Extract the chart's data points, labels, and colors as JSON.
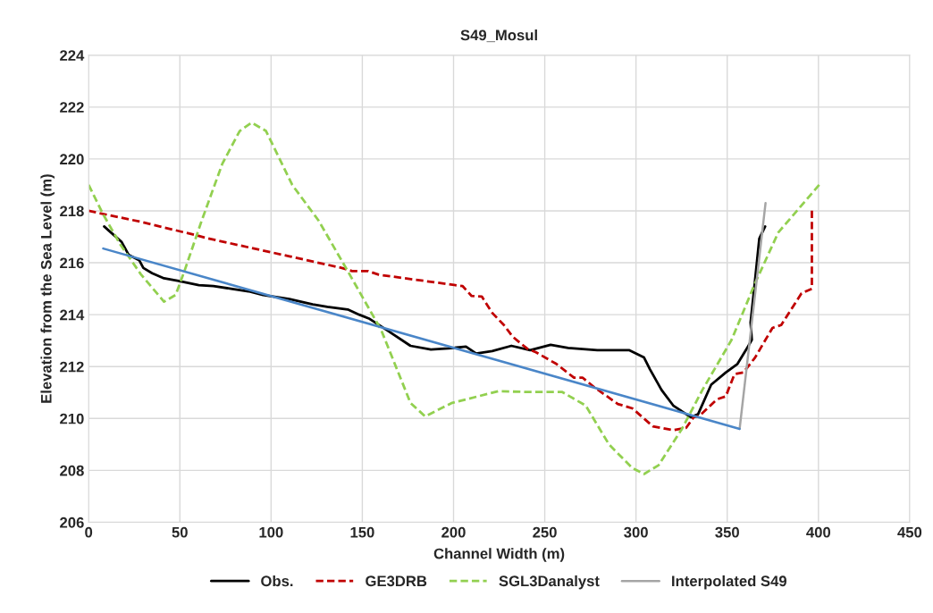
{
  "chart_data": {
    "type": "line",
    "title": "S49_Mosul",
    "xlabel": "Channel Width (m)",
    "ylabel": "Elevation from the Sea Level (m)",
    "xlim": [
      0,
      450
    ],
    "xticks": [
      0,
      50,
      100,
      150,
      200,
      250,
      300,
      350,
      400,
      450
    ],
    "ylim": [
      206,
      224
    ],
    "yticks": [
      206,
      208,
      210,
      212,
      214,
      216,
      218,
      220,
      222,
      224
    ],
    "grid": true,
    "legend": "bottom",
    "marker": "none",
    "series": [
      {
        "name": "Obs.",
        "color": "#000000",
        "line_style": "solid",
        "x": [
          8.5,
          13.3,
          18.1,
          22,
          27.7,
          30,
          34.8,
          41.3,
          49.3,
          60.4,
          68.4,
          78,
          87.6,
          95.6,
          110,
          122.8,
          130.8,
          142,
          148.3,
          154,
          163.6,
          176.4,
          187.6,
          197.2,
          206.8,
          212.4,
          221.2,
          231.7,
          242,
          253.2,
          262.8,
          278.8,
          296.4,
          304.4,
          307.6,
          314,
          320.4,
          330,
          334,
          341.2,
          349.2,
          355.6,
          361.2,
          363.5,
          362.8,
          365.2,
          367.6,
          370.8
        ],
        "values": [
          217.4,
          217.1,
          216.8,
          216.3,
          216.1,
          215.8,
          215.6,
          215.4,
          215.3,
          215.14,
          215.1,
          215.0,
          214.9,
          214.76,
          214.6,
          214.4,
          214.3,
          214.2,
          214.0,
          213.84,
          213.4,
          212.8,
          212.66,
          212.7,
          212.77,
          212.5,
          212.6,
          212.8,
          212.63,
          212.84,
          212.72,
          212.63,
          212.63,
          212.35,
          211.9,
          211.1,
          210.5,
          210.05,
          210.16,
          211.3,
          211.77,
          212.1,
          212.75,
          213.03,
          213.7,
          215.3,
          216.94,
          217.4
        ]
      },
      {
        "name": "GE3DRB",
        "color": "#c00000",
        "line_style": "dashed",
        "x": [
          0,
          28.5,
          58.9,
          65.3,
          110,
          138.8,
          144.4,
          153.2,
          159,
          205,
          209.9,
          215.5,
          221.2,
          227.6,
          232.4,
          240.4,
          245.2,
          256.4,
          266,
          270.8,
          277.2,
          290,
          298,
          309.2,
          320.4,
          327.5,
          331.6,
          334.8,
          344.4,
          349.2,
          354,
          358.8,
          365.2,
          374.8,
          379.6,
          390.7,
          396.4,
          396.4
        ],
        "values": [
          218.0,
          217.58,
          217.06,
          216.94,
          216.25,
          215.8,
          215.68,
          215.68,
          215.54,
          215.1,
          214.72,
          214.7,
          214.07,
          213.6,
          213.15,
          212.69,
          212.55,
          212.1,
          211.57,
          211.57,
          211.2,
          210.56,
          210.39,
          209.7,
          209.55,
          209.64,
          210.05,
          210.1,
          210.74,
          210.85,
          211.71,
          211.77,
          212.34,
          213.49,
          213.6,
          214.82,
          215.0,
          218.03
        ]
      },
      {
        "name": "SGL3Danalyst",
        "color": "#92d050",
        "line_style": "dashed",
        "x": [
          0,
          8,
          17.4,
          28.6,
          41.3,
          47.7,
          52.5,
          62,
          73.3,
          82.8,
          89.3,
          97.2,
          111.6,
          126,
          142,
          160.4,
          176.4,
          184.4,
          198.8,
          224.4,
          240.4,
          259.6,
          272.4,
          285.2,
          298,
          304.4,
          312.4,
          325.2,
          336.4,
          352.4,
          365.2,
          378,
          400.4
        ],
        "values": [
          219.0,
          217.86,
          216.7,
          215.56,
          214.5,
          214.76,
          215.68,
          217.63,
          219.82,
          221.08,
          221.4,
          221.08,
          219.0,
          217.63,
          215.68,
          213.4,
          210.6,
          210.08,
          210.59,
          211.05,
          211.02,
          211.02,
          210.5,
          209.0,
          208.09,
          207.86,
          208.2,
          209.6,
          211.1,
          213.03,
          215.2,
          217.17,
          219.0
        ]
      },
      {
        "name": "Interpolated S49",
        "color": "#a5a5a5",
        "line_style": "solid",
        "x": [
          356.8,
          371
        ],
        "values": [
          209.6,
          218.3
        ]
      },
      {
        "color": "#4a86c8",
        "line_style": "solid",
        "x": [
          8,
          356.8
        ],
        "values": [
          216.55,
          209.6
        ]
      }
    ]
  }
}
